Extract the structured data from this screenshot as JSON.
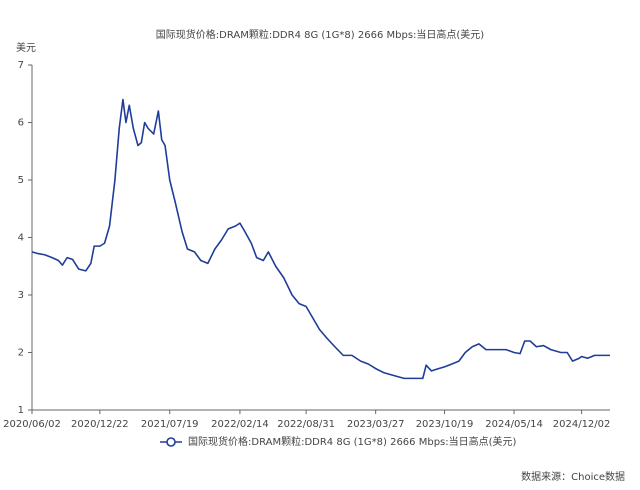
{
  "chart_data": {
    "type": "line",
    "title": "国际现货价格:DRAM颗粒:DDR4 8G (1G*8) 2666 Mbps:当日高点(美元)",
    "y_label": "美元",
    "source": "数据来源：Choice数据",
    "x": [
      "2020/06/02",
      "2020/06/20",
      "2020/07/10",
      "2020/08/01",
      "2020/08/20",
      "2020/09/01",
      "2020/09/15",
      "2020/10/01",
      "2020/10/20",
      "2020/11/10",
      "2020/11/25",
      "2020/12/05",
      "2020/12/22",
      "2021/01/05",
      "2021/01/20",
      "2021/02/05",
      "2021/02/18",
      "2021/03/01",
      "2021/03/10",
      "2021/03/20",
      "2021/04/01",
      "2021/04/15",
      "2021/04/25",
      "2021/05/05",
      "2021/05/15",
      "2021/06/01",
      "2021/06/15",
      "2021/06/25",
      "2021/07/05",
      "2021/07/19",
      "2021/08/05",
      "2021/08/25",
      "2021/09/10",
      "2021/10/01",
      "2021/10/20",
      "2021/11/10",
      "2021/12/01",
      "2021/12/20",
      "2022/01/10",
      "2022/02/01",
      "2022/02/14",
      "2022/03/01",
      "2022/03/20",
      "2022/04/05",
      "2022/04/25",
      "2022/05/10",
      "2022/06/01",
      "2022/06/25",
      "2022/07/20",
      "2022/08/10",
      "2022/08/31",
      "2022/09/20",
      "2022/10/10",
      "2022/11/01",
      "2022/11/25",
      "2022/12/20",
      "2023/01/15",
      "2023/02/10",
      "2023/03/05",
      "2023/03/27",
      "2023/04/20",
      "2023/05/20",
      "2023/06/20",
      "2023/07/20",
      "2023/08/15",
      "2023/08/25",
      "2023/09/10",
      "2023/10/01",
      "2023/10/19",
      "2023/11/10",
      "2023/12/01",
      "2023/12/20",
      "2024/01/10",
      "2024/01/30",
      "2024/02/20",
      "2024/03/20",
      "2024/04/20",
      "2024/05/14",
      "2024/06/01",
      "2024/06/15",
      "2024/07/01",
      "2024/07/20",
      "2024/08/10",
      "2024/09/01",
      "2024/10/01",
      "2024/10/20",
      "2024/11/05",
      "2024/11/25",
      "2024/12/02",
      "2024/12/20",
      "2025/01/10",
      "2025/02/01",
      "2025/02/25"
    ],
    "series": [
      {
        "name": "国际现货价格:DRAM颗粒:DDR4 8G (1G*8) 2666 Mbps:当日高点(美元)",
        "color": "#1f3d99",
        "values": [
          3.75,
          3.72,
          3.7,
          3.65,
          3.6,
          3.52,
          3.65,
          3.62,
          3.45,
          3.42,
          3.55,
          3.85,
          3.85,
          3.9,
          4.2,
          5.0,
          5.9,
          6.4,
          6.0,
          6.3,
          5.9,
          5.6,
          5.65,
          6.0,
          5.9,
          5.8,
          6.2,
          5.7,
          5.6,
          5.0,
          4.6,
          4.1,
          3.8,
          3.75,
          3.6,
          3.55,
          3.8,
          3.95,
          4.15,
          4.2,
          4.25,
          4.1,
          3.9,
          3.65,
          3.6,
          3.75,
          3.5,
          3.3,
          3.0,
          2.85,
          2.8,
          2.6,
          2.4,
          2.25,
          2.1,
          1.95,
          1.95,
          1.85,
          1.8,
          1.72,
          1.65,
          1.6,
          1.55,
          1.55,
          1.55,
          1.78,
          1.68,
          1.72,
          1.75,
          1.8,
          1.85,
          2.0,
          2.1,
          2.15,
          2.05,
          2.05,
          2.05,
          2.0,
          1.98,
          2.2,
          2.2,
          2.1,
          2.12,
          2.05,
          2.0,
          2.0,
          1.85,
          1.9,
          1.93,
          1.9,
          1.95,
          1.95,
          1.95
        ]
      }
    ],
    "xlim": [
      "2020/06/02",
      "2025/02/25"
    ],
    "xticks": [
      "2020/06/02",
      "2020/12/22",
      "2021/07/19",
      "2022/02/14",
      "2022/08/31",
      "2023/03/27",
      "2023/10/19",
      "2024/05/14",
      "2024/12/02"
    ],
    "ylim": [
      1,
      7
    ],
    "yticks": [
      1,
      2,
      3,
      4,
      5,
      6,
      7
    ],
    "grid": false,
    "legend": "bottom"
  }
}
